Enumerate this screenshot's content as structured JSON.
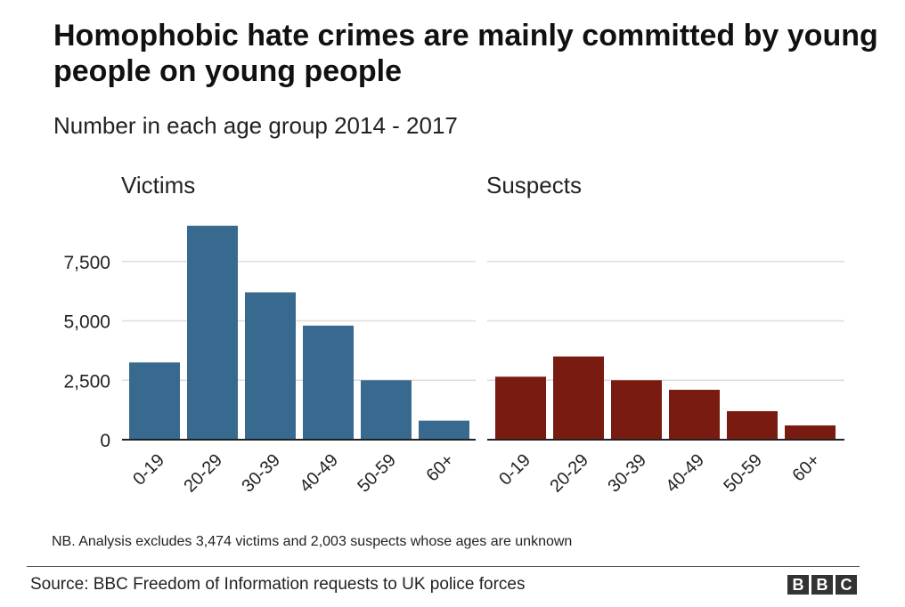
{
  "title": "Homophobic hate crimes are mainly committed by young people on young people",
  "subtitle": "Number in each age group 2014 - 2017",
  "note": "NB. Analysis excludes 3,474 victims and 2,003 suspects whose ages are unknown",
  "source": "Source: BBC Freedom of Information requests to UK police forces",
  "logo": [
    "B",
    "B",
    "C"
  ],
  "chart_data": [
    {
      "type": "bar",
      "title": "Victims",
      "categories": [
        "0-19",
        "20-29",
        "30-39",
        "40-49",
        "50-59",
        "60+"
      ],
      "values": [
        3250,
        9000,
        6200,
        4800,
        2500,
        800
      ],
      "ylim": [
        0,
        9000
      ],
      "yticks": [
        0,
        2500,
        5000,
        7500
      ],
      "ytick_labels": [
        "0",
        "2,500",
        "5,000",
        "7,500"
      ],
      "color": "#386a8f"
    },
    {
      "type": "bar",
      "title": "Suspects",
      "categories": [
        "0-19",
        "20-29",
        "30-39",
        "40-49",
        "50-59",
        "60+"
      ],
      "values": [
        2650,
        3500,
        2500,
        2100,
        1200,
        600
      ],
      "ylim": [
        0,
        9000
      ],
      "yticks": [
        0,
        2500,
        5000,
        7500
      ],
      "color": "#7a1b12"
    }
  ]
}
